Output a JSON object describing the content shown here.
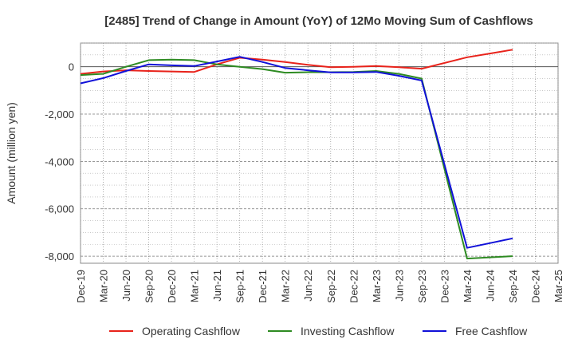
{
  "chart_data": {
    "type": "line",
    "title": "[2485]  Trend of Change in Amount (YoY) of 12Mo Moving Sum of Cashflows",
    "xlabel": "",
    "ylabel": "Amount (million yen)",
    "categories": [
      "Dec-19",
      "Mar-20",
      "Jun-20",
      "Sep-20",
      "Dec-20",
      "Mar-21",
      "Jun-21",
      "Sep-21",
      "Dec-21",
      "Mar-22",
      "Jun-22",
      "Sep-22",
      "Dec-22",
      "Mar-23",
      "Jun-23",
      "Sep-23",
      "Dec-23",
      "Mar-24",
      "Jun-24",
      "Sep-24",
      "Dec-24",
      "Mar-25"
    ],
    "ylim": [
      -8300,
      1000
    ],
    "yticks": [
      0,
      -2000,
      -4000,
      -6000,
      -8000
    ],
    "ytick_labels": [
      "0",
      "-2,000",
      "-4,000",
      "-6,000",
      "-8,000"
    ],
    "grid": true,
    "legend_position": "bottom",
    "series": [
      {
        "name": "Operating Cashflow",
        "color": "#e8231b",
        "values": [
          -300,
          -200,
          -150,
          -180,
          -200,
          -220,
          100,
          380,
          300,
          200,
          80,
          -20,
          0,
          30,
          -20,
          -80,
          null,
          400,
          560,
          720,
          null,
          null
        ]
      },
      {
        "name": "Investing Cashflow",
        "color": "#2e8b22",
        "values": [
          -350,
          -300,
          0,
          280,
          300,
          280,
          100,
          0,
          -100,
          -250,
          -230,
          -230,
          -220,
          -180,
          -300,
          -500,
          null,
          -8100,
          -8050,
          -8000,
          null,
          null
        ]
      },
      {
        "name": "Free Cashflow",
        "color": "#1010d8",
        "values": [
          -700,
          -480,
          -180,
          100,
          60,
          30,
          220,
          420,
          200,
          -50,
          -150,
          -240,
          -240,
          -220,
          -380,
          -580,
          null,
          -7650,
          -7450,
          -7250,
          null,
          null
        ]
      }
    ]
  }
}
